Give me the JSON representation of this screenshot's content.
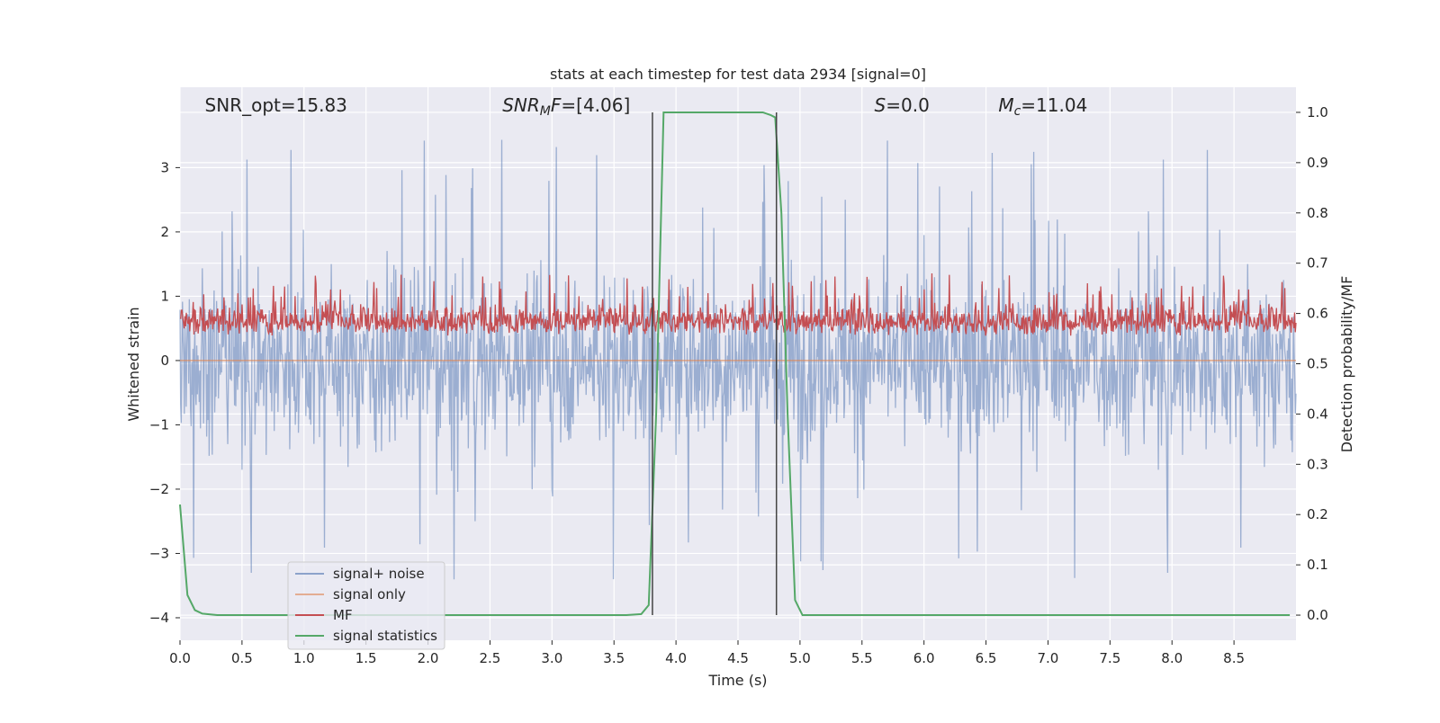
{
  "chart_data": {
    "type": "line",
    "title": "stats at each timestep for test data 2934 [signal=0]",
    "xlabel": "Time (s)",
    "ylabel_left": "Whitened strain",
    "ylabel_right": "Detection probability/MF",
    "xlim": [
      0,
      9
    ],
    "ylim_left": [
      -4.35,
      4.25
    ],
    "ylim_right": [
      -0.05,
      1.05
    ],
    "x_ticks": [
      0.0,
      0.5,
      1.0,
      1.5,
      2.0,
      2.5,
      3.0,
      3.5,
      4.0,
      4.5,
      5.0,
      5.5,
      6.0,
      6.5,
      7.0,
      7.5,
      8.0,
      8.5
    ],
    "x_tick_labels": [
      "0.0",
      "0.5",
      "1.0",
      "1.5",
      "2.0",
      "2.5",
      "3.0",
      "3.5",
      "4.0",
      "4.5",
      "5.0",
      "5.5",
      "6.0",
      "6.5",
      "7.0",
      "7.5",
      "8.0",
      "8.5"
    ],
    "y_left_ticks": [
      -4,
      -3,
      -2,
      -1,
      0,
      1,
      2,
      3
    ],
    "y_left_tick_labels": [
      "−4",
      "−3",
      "−2",
      "−1",
      "0",
      "1",
      "2",
      "3"
    ],
    "y_right_ticks": [
      0.0,
      0.1,
      0.2,
      0.3,
      0.4,
      0.5,
      0.6,
      0.7,
      0.8,
      0.9,
      1.0
    ],
    "y_right_tick_labels": [
      "0.0",
      "0.1",
      "0.2",
      "0.3",
      "0.4",
      "0.5",
      "0.6",
      "0.7",
      "0.8",
      "0.9",
      "1.0"
    ],
    "grid": true,
    "legend_position": "lower-left",
    "annotations": [
      {
        "label": "SNR_opt=15.83",
        "x": 0.2
      },
      {
        "label": "SNR_MF=[4.06]",
        "x": 2.6
      },
      {
        "label": "S=0.0",
        "x": 5.6
      },
      {
        "label": "M_c=11.04",
        "x": 6.6
      }
    ],
    "vertical_lines_x": [
      3.81,
      4.81
    ],
    "series": [
      {
        "name": "signal+ noise",
        "color": "#4c72b0",
        "axis": "left",
        "style": "noise trace, amplitude about ±2 with spikes to ±3.5",
        "amplitude": 2.0,
        "peak_max": 3.5,
        "peak_min": -3.45
      },
      {
        "name": "signal only",
        "color": "#dd8452",
        "axis": "left",
        "x": [
          0,
          9
        ],
        "y": [
          0,
          0
        ]
      },
      {
        "name": "MF",
        "color": "#c44e52",
        "axis": "right",
        "style": "band between about 0.55 and 0.68",
        "baseline": 0.555,
        "band_top": 0.63,
        "peak_max": 0.68
      },
      {
        "name": "signal statistics",
        "color": "#55a868",
        "axis": "right",
        "x": [
          0.0,
          0.06,
          0.12,
          0.18,
          0.3,
          0.6,
          1.0,
          2.0,
          3.0,
          3.6,
          3.72,
          3.78,
          3.84,
          3.9,
          4.0,
          4.5,
          4.7,
          4.76,
          4.8,
          4.85,
          4.9,
          4.96,
          5.02,
          5.5,
          6.5,
          7.5,
          8.5,
          8.95
        ],
        "y": [
          0.22,
          0.04,
          0.01,
          0.003,
          0.0,
          0.0,
          0.0,
          0.0,
          0.0,
          0.0,
          0.002,
          0.02,
          0.4,
          1.0,
          1.0,
          1.0,
          1.0,
          0.995,
          0.99,
          0.8,
          0.4,
          0.03,
          0.0,
          0.0,
          0.0,
          0.0,
          0.0,
          0.0
        ]
      }
    ]
  }
}
